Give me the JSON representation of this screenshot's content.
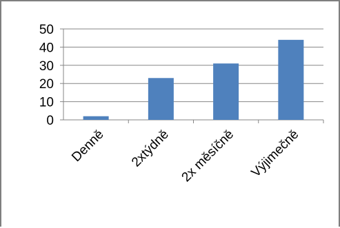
{
  "chart_data": {
    "type": "bar",
    "categories": [
      "Denně",
      "2xtýdně",
      "2x měsíčně",
      "Výjimečně"
    ],
    "values": [
      2,
      23,
      31,
      44
    ],
    "title": "",
    "xlabel": "",
    "ylabel": "",
    "ylim": [
      0,
      50
    ],
    "yticks": [
      "0",
      "10",
      "20",
      "30",
      "40",
      "50"
    ],
    "grid": true,
    "legend": "none",
    "bar_color": "#4F81BD",
    "grid_color": "#868686"
  }
}
